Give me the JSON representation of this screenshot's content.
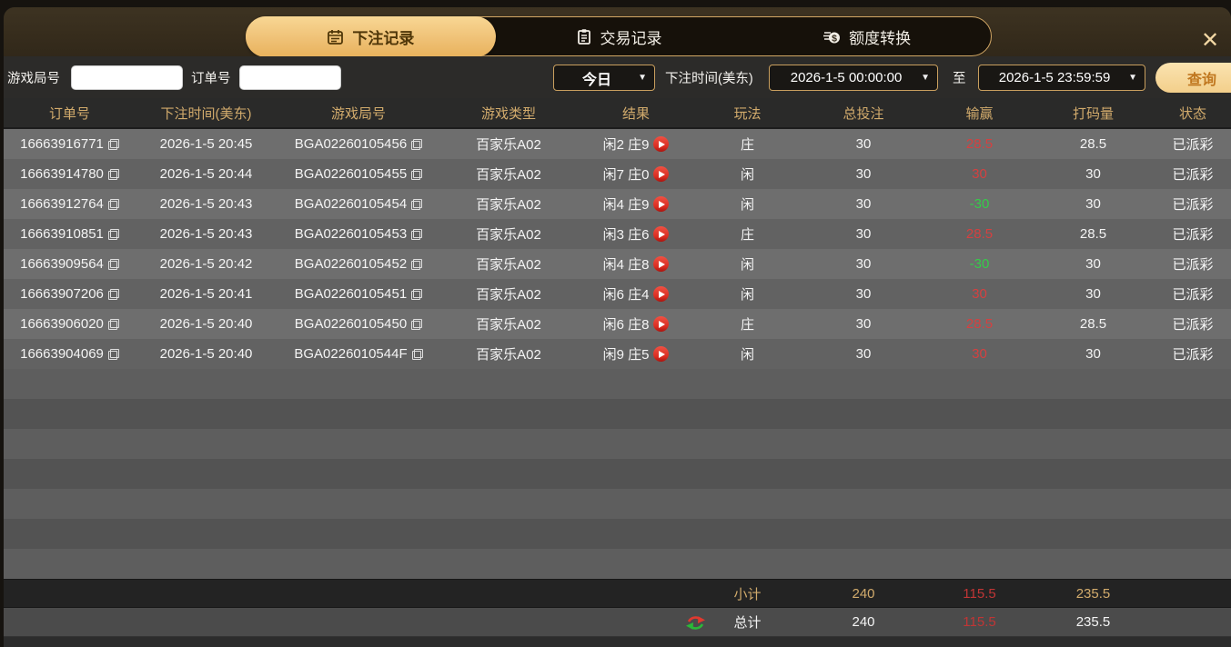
{
  "tabs": [
    {
      "label": "下注记录",
      "icon": "calendar-icon",
      "active": true
    },
    {
      "label": "交易记录",
      "icon": "clipboard-icon",
      "active": false
    },
    {
      "label": "额度转换",
      "icon": "coins-icon",
      "active": false
    }
  ],
  "close_label": "✕",
  "filters": {
    "game_round_label": "游戏局号",
    "game_round_value": "",
    "order_no_label": "订单号",
    "order_no_value": "",
    "range_preset": "今日",
    "bet_time_label": "下注时间(美东)",
    "time_from": "2026-1-5 00:00:00",
    "to_label": "至",
    "time_to": "2026-1-5 23:59:59",
    "query_button": "查询",
    "dropdown_arrow": "▼"
  },
  "table": {
    "columns": [
      "订单号",
      "下注时间(美东)",
      "游戏局号",
      "游戏类型",
      "结果",
      "玩法",
      "总投注",
      "输赢",
      "打码量",
      "状态"
    ],
    "rows": [
      {
        "order_no": "16663916771",
        "time": "2026-1-5 20:45",
        "round": "BGA02260105456",
        "game_type": "百家乐A02",
        "result": "闲2 庄9",
        "play": "庄",
        "total_bet": "30",
        "win_loss": "28.5",
        "win_loss_color": "red",
        "wager": "28.5",
        "status": "已派彩"
      },
      {
        "order_no": "16663914780",
        "time": "2026-1-5 20:44",
        "round": "BGA02260105455",
        "game_type": "百家乐A02",
        "result": "闲7 庄0",
        "play": "闲",
        "total_bet": "30",
        "win_loss": "30",
        "win_loss_color": "red",
        "wager": "30",
        "status": "已派彩"
      },
      {
        "order_no": "16663912764",
        "time": "2026-1-5 20:43",
        "round": "BGA02260105454",
        "game_type": "百家乐A02",
        "result": "闲4 庄9",
        "play": "闲",
        "total_bet": "30",
        "win_loss": "-30",
        "win_loss_color": "green",
        "wager": "30",
        "status": "已派彩"
      },
      {
        "order_no": "16663910851",
        "time": "2026-1-5 20:43",
        "round": "BGA02260105453",
        "game_type": "百家乐A02",
        "result": "闲3 庄6",
        "play": "庄",
        "total_bet": "30",
        "win_loss": "28.5",
        "win_loss_color": "red",
        "wager": "28.5",
        "status": "已派彩"
      },
      {
        "order_no": "16663909564",
        "time": "2026-1-5 20:42",
        "round": "BGA02260105452",
        "game_type": "百家乐A02",
        "result": "闲4 庄8",
        "play": "闲",
        "total_bet": "30",
        "win_loss": "-30",
        "win_loss_color": "green",
        "wager": "30",
        "status": "已派彩"
      },
      {
        "order_no": "16663907206",
        "time": "2026-1-5 20:41",
        "round": "BGA02260105451",
        "game_type": "百家乐A02",
        "result": "闲6 庄4",
        "play": "闲",
        "total_bet": "30",
        "win_loss": "30",
        "win_loss_color": "red",
        "wager": "30",
        "status": "已派彩"
      },
      {
        "order_no": "16663906020",
        "time": "2026-1-5 20:40",
        "round": "BGA02260105450",
        "game_type": "百家乐A02",
        "result": "闲6 庄8",
        "play": "庄",
        "total_bet": "30",
        "win_loss": "28.5",
        "win_loss_color": "red",
        "wager": "28.5",
        "status": "已派彩"
      },
      {
        "order_no": "16663904069",
        "time": "2026-1-5 20:40",
        "round": "BGA0226010544F",
        "game_type": "百家乐A02",
        "result": "闲9 庄5",
        "play": "闲",
        "total_bet": "30",
        "win_loss": "30",
        "win_loss_color": "red",
        "wager": "30",
        "status": "已派彩"
      }
    ],
    "empty_row_count": 7,
    "subtotal": {
      "label": "小计",
      "total_bet": "240",
      "win_loss": "115.5",
      "wager": "235.5"
    },
    "grand_total": {
      "label": "总计",
      "total_bet": "240",
      "win_loss": "115.5",
      "wager": "235.5"
    }
  },
  "colors": {
    "accent_gold": "#d2ab6c",
    "tab_active_gold": "#efc176",
    "win_red": "#d54040",
    "loss_green": "#35cc4a"
  }
}
